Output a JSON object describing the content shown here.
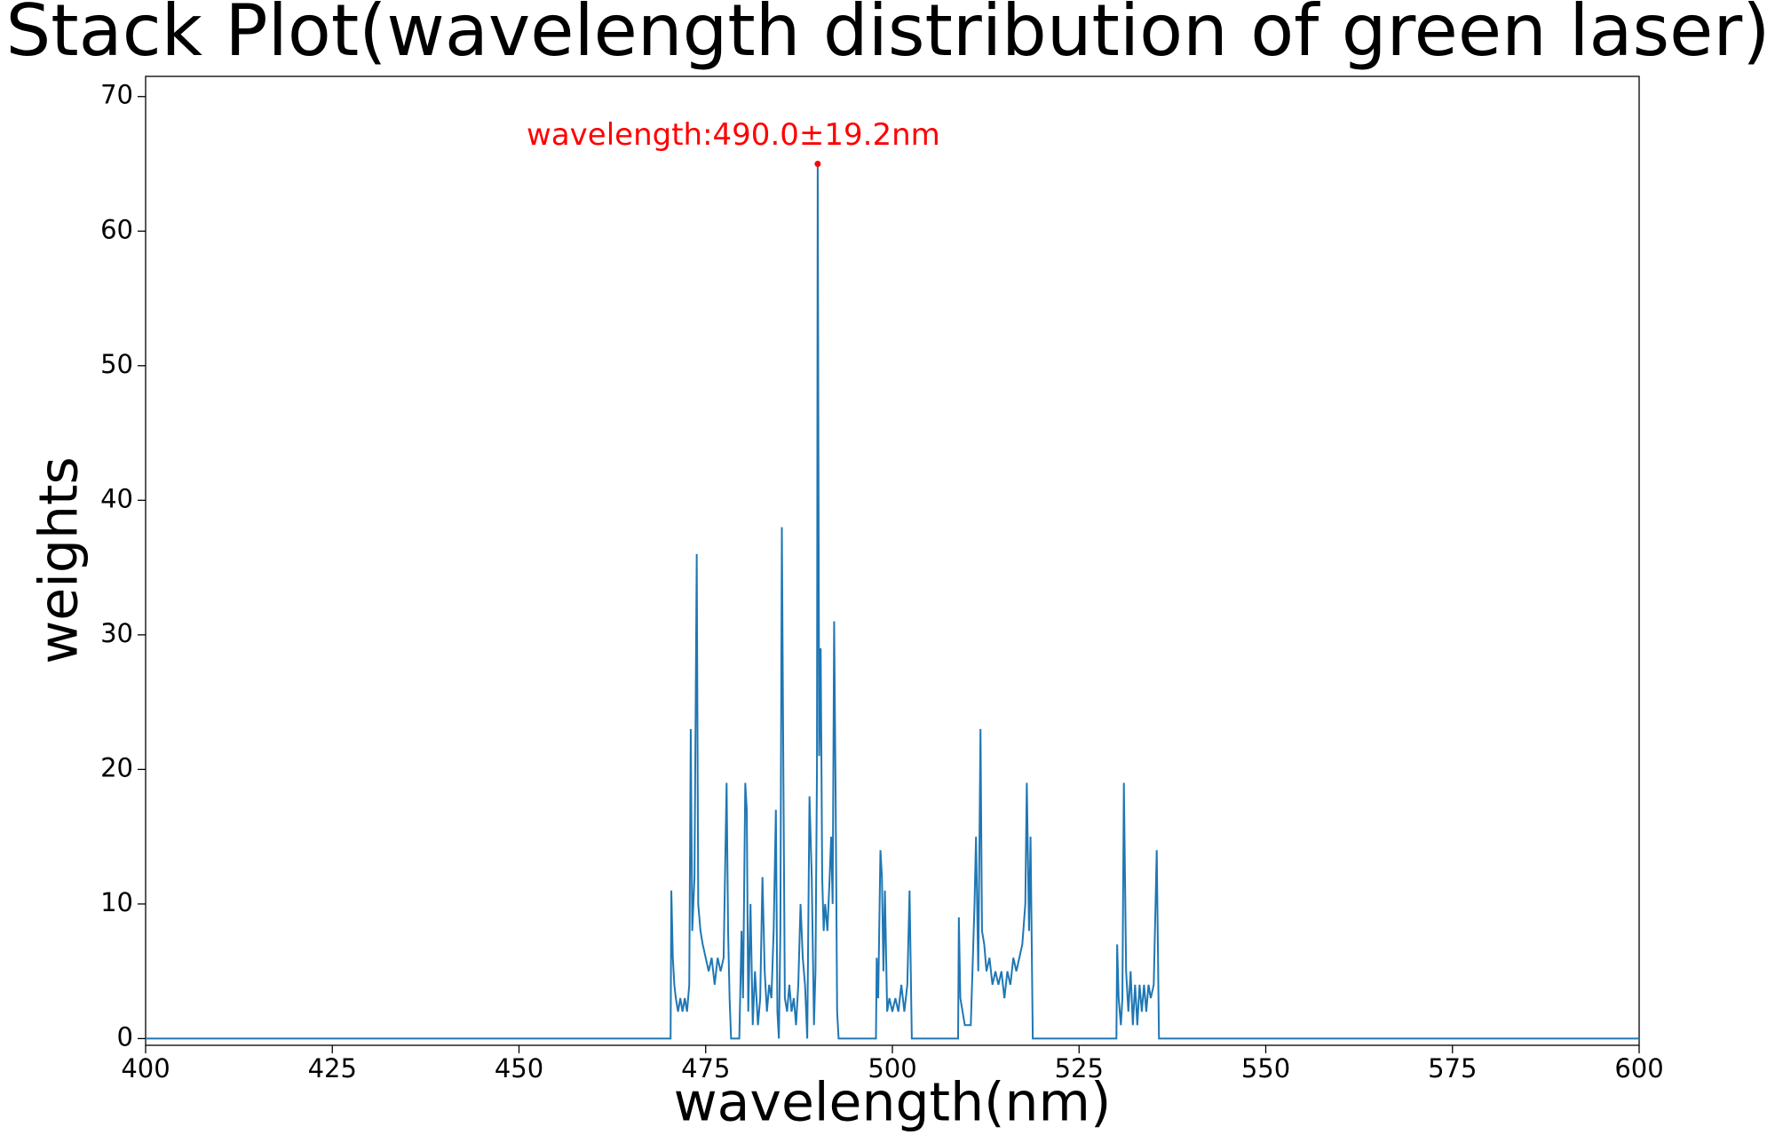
{
  "chart_data": {
    "type": "line",
    "title": "Stack Plot(wavelength distribution of green laser)",
    "xlabel": "wavelength(nm)",
    "ylabel": "weights",
    "color": "#1f77b4",
    "x": [
      400,
      470.3,
      470.4,
      470.6,
      470.8,
      471,
      471.3,
      471.6,
      471.9,
      472.2,
      472.5,
      472.8,
      473,
      473.2,
      473.5,
      473.8,
      474,
      474.3,
      474.6,
      475,
      475.4,
      475.8,
      476.2,
      476.6,
      477,
      477.4,
      477.8,
      478,
      478.2,
      478.4,
      479.5,
      479.8,
      480,
      480.3,
      480.5,
      480.7,
      481,
      481.3,
      481.6,
      482,
      482.3,
      482.6,
      482.9,
      483.2,
      483.5,
      483.8,
      484.1,
      484.4,
      484.6,
      484.8,
      485,
      485.2,
      485.4,
      485.6,
      485.9,
      486.2,
      486.5,
      486.8,
      487.1,
      487.4,
      487.7,
      488,
      488.3,
      488.6,
      488.9,
      489.2,
      489.5,
      489.7,
      489.9,
      490,
      490.2,
      490.4,
      490.6,
      490.8,
      491,
      491.3,
      491.6,
      491.8,
      492,
      492.2,
      492.4,
      492.6,
      492.8,
      497.8,
      497.9,
      498.1,
      498.4,
      498.6,
      498.8,
      499,
      499.3,
      499.6,
      500,
      500.4,
      500.8,
      501.2,
      501.6,
      502,
      502.3,
      502.6,
      508.8,
      508.9,
      509.1,
      509.4,
      509.7,
      510.5,
      511,
      511.2,
      511.5,
      511.8,
      512,
      512.3,
      512.6,
      513,
      513.4,
      513.8,
      514.2,
      514.6,
      515,
      515.4,
      515.8,
      516.2,
      516.6,
      517,
      517.4,
      517.8,
      518,
      518.3,
      518.5,
      518.8,
      530,
      530.1,
      530.3,
      530.6,
      530.8,
      531,
      531.3,
      531.6,
      531.9,
      532.2,
      532.5,
      532.8,
      533.1,
      533.4,
      533.7,
      534,
      534.3,
      534.6,
      535,
      535.4,
      535.7,
      600
    ],
    "values": [
      0,
      0,
      11,
      6,
      4,
      3,
      2,
      3,
      2,
      3,
      2,
      4,
      23,
      8,
      12,
      36,
      10,
      8,
      7,
      6,
      5,
      6,
      4,
      6,
      5,
      6,
      19,
      8,
      3,
      0,
      0,
      8,
      3,
      19,
      17,
      2,
      10,
      1,
      5,
      1,
      3,
      12,
      5,
      2,
      4,
      3,
      8,
      17,
      2,
      0,
      8,
      38,
      20,
      3,
      2,
      4,
      2,
      3,
      1,
      4,
      10,
      6,
      4,
      0,
      18,
      12,
      1,
      5,
      20,
      65,
      21,
      29,
      12,
      8,
      10,
      8,
      12,
      15,
      10,
      31,
      18,
      2,
      0,
      0,
      6,
      3,
      14,
      12,
      5,
      11,
      2,
      3,
      2,
      3,
      2,
      4,
      2,
      4,
      11,
      0,
      0,
      9,
      3,
      2,
      1,
      1,
      10,
      15,
      5,
      23,
      8,
      7,
      5,
      6,
      4,
      5,
      4,
      5,
      3,
      5,
      4,
      6,
      5,
      6,
      7,
      10,
      19,
      8,
      15,
      0,
      0,
      7,
      3,
      1,
      3,
      19,
      5,
      2,
      5,
      1,
      4,
      1,
      4,
      2,
      4,
      2,
      4,
      3,
      4,
      14,
      0,
      0
    ],
    "annotation": {
      "text": "wavelength:490.0±19.2nm",
      "x": 490,
      "y": 65,
      "color": "red"
    },
    "xlim": [
      400,
      600
    ],
    "ylim": [
      -0.5,
      71.5
    ],
    "xticks": [
      400,
      425,
      450,
      475,
      500,
      525,
      550,
      575,
      600
    ],
    "yticks": [
      0,
      10,
      20,
      30,
      40,
      50,
      60,
      70
    ]
  }
}
